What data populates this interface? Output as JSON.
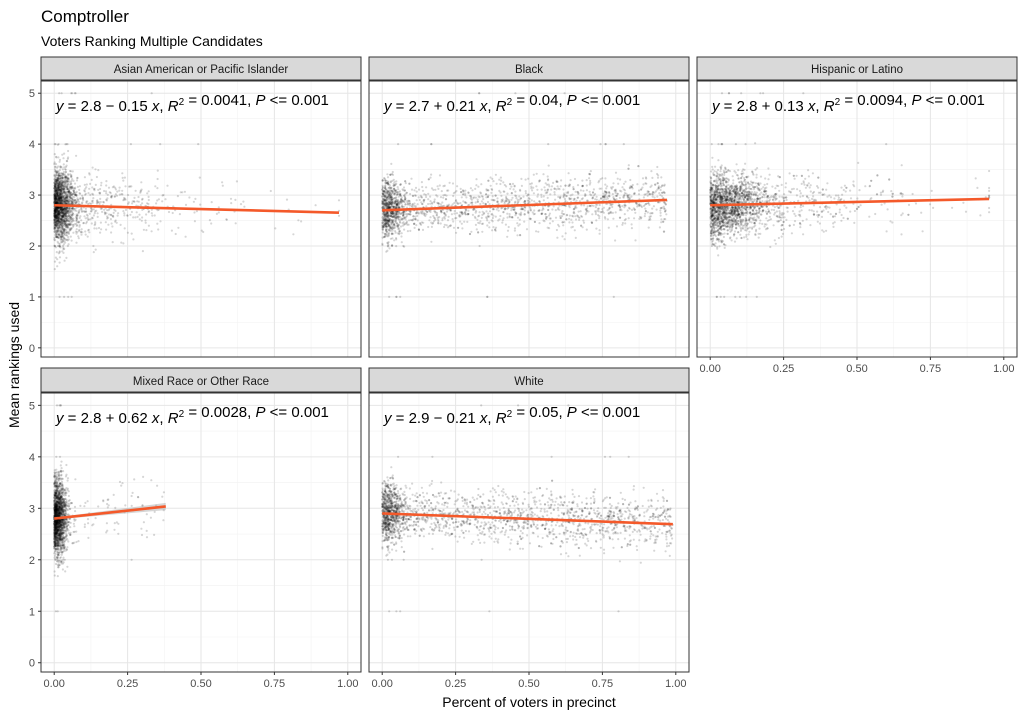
{
  "chart_data": {
    "type": "scatter",
    "title": "Comptroller",
    "subtitle": "Voters Ranking Multiple Candidates",
    "xlabel": "Percent of voters in precinct",
    "ylabel": "Mean rankings used",
    "xlim": [
      0,
      1
    ],
    "ylim": [
      0,
      5
    ],
    "x_ticks": [
      "0.00",
      "0.25",
      "0.50",
      "0.75",
      "1.00"
    ],
    "y_ticks": [
      "0",
      "1",
      "2",
      "3",
      "4",
      "5"
    ],
    "grid": true,
    "line_color": "#f4592a",
    "panels": [
      {
        "label": "Asian American or Pacific Islander",
        "intercept": 2.8,
        "slope": -0.15,
        "sign": "−",
        "slope_abs": "0.15",
        "int_text": "2.8",
        "r2": "0.0041",
        "p": "0.001",
        "x_max": 0.97,
        "x_spread": "skewed-low",
        "y_sd": 0.3
      },
      {
        "label": "Black",
        "intercept": 2.7,
        "slope": 0.21,
        "sign": "+",
        "slope_abs": "0.21",
        "int_text": "2.7",
        "r2": "0.04",
        "p": "0.001",
        "x_max": 0.97,
        "x_spread": "wide",
        "y_sd": 0.25
      },
      {
        "label": "Hispanic or Latino",
        "intercept": 2.8,
        "slope": 0.13,
        "sign": "+",
        "slope_abs": "0.13",
        "int_text": "2.8",
        "r2": "0.0094",
        "p": "0.001",
        "x_max": 0.95,
        "x_spread": "moderate",
        "y_sd": 0.28
      },
      {
        "label": "Mixed Race or Other Race",
        "intercept": 2.8,
        "slope": 0.62,
        "sign": "+",
        "slope_abs": "0.62",
        "int_text": "2.8",
        "r2": "0.0028",
        "p": "0.001",
        "x_max": 0.38,
        "x_spread": "very-low",
        "y_sd": 0.3
      },
      {
        "label": "White",
        "intercept": 2.9,
        "slope": -0.21,
        "sign": "−",
        "slope_abs": "0.21",
        "int_text": "2.9",
        "r2": "0.05",
        "p": "0.001",
        "x_max": 0.99,
        "x_spread": "wide",
        "y_sd": 0.25
      }
    ]
  }
}
